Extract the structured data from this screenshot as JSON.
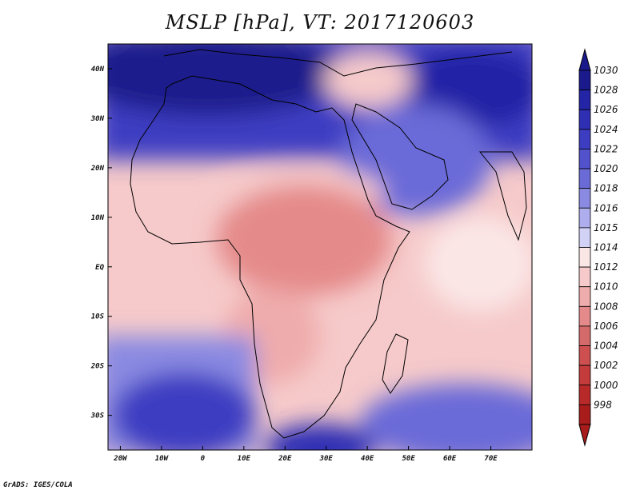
{
  "title": "MSLP [hPa], VT: 2017120603",
  "footer": "GrADS: IGES/COLA",
  "map": {
    "lon_range": [
      -23,
      80
    ],
    "lat_range": [
      -37,
      45
    ],
    "lon_ticks": [
      {
        "lon": -20,
        "label": "20W"
      },
      {
        "lon": -10,
        "label": "10W"
      },
      {
        "lon": 0,
        "label": "0"
      },
      {
        "lon": 10,
        "label": "10E"
      },
      {
        "lon": 20,
        "label": "20E"
      },
      {
        "lon": 30,
        "label": "30E"
      },
      {
        "lon": 40,
        "label": "40E"
      },
      {
        "lon": 50,
        "label": "50E"
      },
      {
        "lon": 60,
        "label": "60E"
      },
      {
        "lon": 70,
        "label": "70E"
      }
    ],
    "lat_ticks": [
      {
        "lat": 40,
        "label": "40N"
      },
      {
        "lat": 30,
        "label": "30N"
      },
      {
        "lat": 20,
        "label": "20N"
      },
      {
        "lat": 10,
        "label": "10N"
      },
      {
        "lat": 0,
        "label": "EQ"
      },
      {
        "lat": -10,
        "label": "10S"
      },
      {
        "lat": -20,
        "label": "20S"
      },
      {
        "lat": -30,
        "label": "30S"
      }
    ],
    "colors": {
      "high_1030": "#1a1a8c",
      "low_1006": "#d56a6a",
      "neutral": "#ffffff",
      "coastline": "#000000"
    }
  },
  "colorbar": {
    "levels": [
      {
        "label": "1030",
        "color": "#1a1a8c"
      },
      {
        "label": "1028",
        "color": "#2424a6"
      },
      {
        "label": "1026",
        "color": "#2f2fb4"
      },
      {
        "label": "1024",
        "color": "#3d3dc2"
      },
      {
        "label": "1022",
        "color": "#5252cc"
      },
      {
        "label": "1020",
        "color": "#6b6bd8"
      },
      {
        "label": "1018",
        "color": "#8a8ae2"
      },
      {
        "label": "1016",
        "color": "#aeaeee"
      },
      {
        "label": "1015",
        "color": "#d2d2f7"
      },
      {
        "label": "1014",
        "color": "#fbe6e6"
      },
      {
        "label": "1012",
        "color": "#f6caca"
      },
      {
        "label": "1010",
        "color": "#efacac"
      },
      {
        "label": "1008",
        "color": "#e58a8a"
      },
      {
        "label": "1006",
        "color": "#d56a6a"
      },
      {
        "label": "1004",
        "color": "#cd4f4f"
      },
      {
        "label": "1002",
        "color": "#c43b3b"
      },
      {
        "label": "1000",
        "color": "#b82a2a"
      },
      {
        "label": "998",
        "color": "#a81c1c"
      }
    ],
    "top_arrow_color": "#1a1a8c",
    "bottom_arrow_color": "#a81c1c"
  }
}
